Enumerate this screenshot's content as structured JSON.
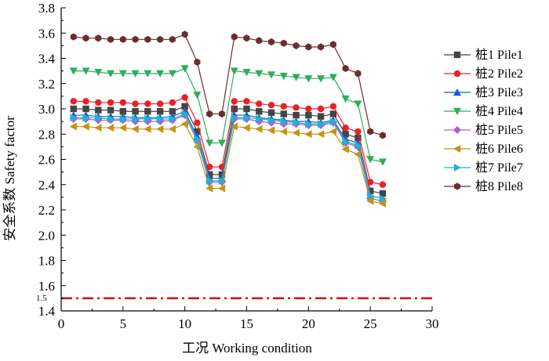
{
  "chart_data": {
    "type": "line",
    "title": "",
    "xlabel": "工况 Working condition",
    "ylabel": "安全系数 Safety factor",
    "xlim": [
      0,
      30
    ],
    "ylim": [
      1.4,
      3.8
    ],
    "x_ticks": [
      "0",
      "5",
      "10",
      "15",
      "20",
      "25",
      "30"
    ],
    "y_ticks": [
      "1.4",
      "1.6",
      "1.8",
      "2.0",
      "2.2",
      "2.4",
      "2.6",
      "2.8",
      "3.0",
      "3.2",
      "3.4",
      "3.6",
      "3.8"
    ],
    "x": [
      1,
      2,
      3,
      4,
      5,
      6,
      7,
      8,
      9,
      10,
      11,
      12,
      13,
      14,
      15,
      16,
      17,
      18,
      19,
      20,
      21,
      22,
      23,
      24,
      25,
      26
    ],
    "series": [
      {
        "name": "桩1 Pile1",
        "color": "#444444",
        "marker": "square",
        "values": [
          3.0,
          3.0,
          2.99,
          2.99,
          2.98,
          2.98,
          2.98,
          2.98,
          2.98,
          3.02,
          2.82,
          2.48,
          2.48,
          3.0,
          3.0,
          2.98,
          2.97,
          2.96,
          2.95,
          2.95,
          2.94,
          2.96,
          2.8,
          2.77,
          2.35,
          2.33
        ]
      },
      {
        "name": "桩2 Pile2",
        "color": "#e8202a",
        "marker": "circle",
        "values": [
          3.06,
          3.06,
          3.05,
          3.05,
          3.05,
          3.04,
          3.04,
          3.04,
          3.05,
          3.09,
          2.89,
          2.54,
          2.54,
          3.06,
          3.06,
          3.04,
          3.03,
          3.02,
          3.01,
          3.0,
          3.0,
          3.02,
          2.85,
          2.82,
          2.42,
          2.4
        ]
      },
      {
        "name": "桩3 Pile3",
        "color": "#1f5fc4",
        "marker": "triangle-up",
        "values": [
          2.95,
          2.95,
          2.94,
          2.94,
          2.94,
          2.93,
          2.93,
          2.93,
          2.94,
          2.98,
          2.78,
          2.45,
          2.45,
          2.95,
          2.95,
          2.93,
          2.92,
          2.91,
          2.9,
          2.9,
          2.89,
          2.91,
          2.76,
          2.73,
          2.31,
          2.29
        ]
      },
      {
        "name": "桩4 Pile4",
        "color": "#2dae5a",
        "marker": "triangle-down",
        "values": [
          3.3,
          3.3,
          3.29,
          3.28,
          3.28,
          3.28,
          3.28,
          3.28,
          3.28,
          3.32,
          3.11,
          2.73,
          2.73,
          3.3,
          3.29,
          3.28,
          3.27,
          3.26,
          3.25,
          3.24,
          3.24,
          3.25,
          3.08,
          3.04,
          2.6,
          2.58
        ]
      },
      {
        "name": "桩5 Pile5",
        "color": "#b05ed6",
        "marker": "diamond",
        "values": [
          2.92,
          2.92,
          2.91,
          2.91,
          2.91,
          2.9,
          2.9,
          2.9,
          2.91,
          2.95,
          2.75,
          2.42,
          2.42,
          2.92,
          2.92,
          2.9,
          2.89,
          2.88,
          2.88,
          2.87,
          2.87,
          2.89,
          2.73,
          2.7,
          2.29,
          2.27
        ]
      },
      {
        "name": "桩6 Pile6",
        "color": "#c7930e",
        "marker": "triangle-left",
        "values": [
          2.86,
          2.86,
          2.85,
          2.85,
          2.85,
          2.84,
          2.84,
          2.84,
          2.84,
          2.88,
          2.7,
          2.37,
          2.37,
          2.86,
          2.85,
          2.84,
          2.83,
          2.82,
          2.81,
          2.8,
          2.8,
          2.82,
          2.68,
          2.64,
          2.27,
          2.25
        ]
      },
      {
        "name": "桩7 Pile7",
        "color": "#1fb3cc",
        "marker": "triangle-right",
        "values": [
          2.93,
          2.93,
          2.93,
          2.92,
          2.92,
          2.92,
          2.92,
          2.92,
          2.92,
          2.96,
          2.76,
          2.43,
          2.43,
          2.93,
          2.93,
          2.92,
          2.91,
          2.9,
          2.89,
          2.88,
          2.88,
          2.9,
          2.74,
          2.71,
          2.31,
          2.29
        ]
      },
      {
        "name": "桩8 Pile8",
        "color": "#6b2d2d",
        "marker": "hexagon",
        "values": [
          3.57,
          3.56,
          3.56,
          3.55,
          3.55,
          3.55,
          3.55,
          3.55,
          3.55,
          3.59,
          3.37,
          2.96,
          2.96,
          3.57,
          3.56,
          3.54,
          3.53,
          3.52,
          3.5,
          3.49,
          3.49,
          3.51,
          3.32,
          3.28,
          2.82,
          2.79
        ]
      }
    ],
    "reference_lines": [
      {
        "label": "1.5",
        "y": 1.5,
        "color": "#e00000",
        "style": "dash-dot"
      }
    ],
    "legend_position": "right"
  }
}
